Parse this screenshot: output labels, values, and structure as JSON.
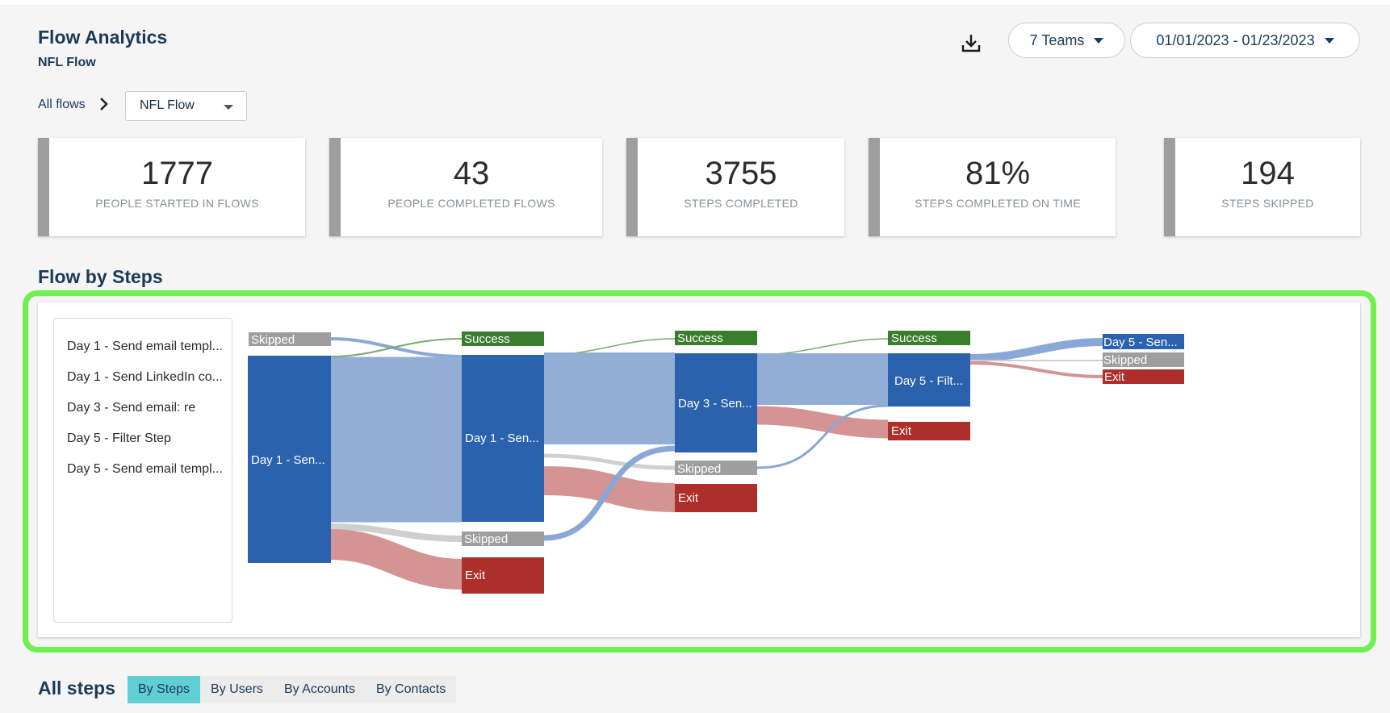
{
  "header": {
    "title": "Flow Analytics",
    "subtitle": "NFL Flow",
    "teams_label": "7 Teams",
    "date_range_label": "01/01/2023 - 01/23/2023"
  },
  "breadcrumb": {
    "link": "All flows",
    "selected_flow": "NFL Flow"
  },
  "stats": [
    {
      "value": "1777",
      "label": "PEOPLE STARTED IN FLOWS"
    },
    {
      "value": "43",
      "label": "PEOPLE COMPLETED FLOWS"
    },
    {
      "value": "3755",
      "label": "STEPS COMPLETED"
    },
    {
      "value": "81%",
      "label": "STEPS COMPLETED ON TIME"
    },
    {
      "value": "194",
      "label": "STEPS SKIPPED"
    }
  ],
  "flow_section": {
    "title": "Flow by Steps",
    "legend": [
      "Day 1 - Send email templ...",
      "Day 1 - Send LinkedIn co...",
      "Day 3 - Send email: re",
      "Day 5 - Filter Step",
      "Day 5 - Send email templ..."
    ],
    "nodes": {
      "c0_skipped": "Skipped",
      "c0_day1": "Day 1 - Sen...",
      "c1_success": "Success",
      "c1_day1": "Day 1 - Sen...",
      "c1_skipped": "Skipped",
      "c1_exit": "Exit",
      "c2_success": "Success",
      "c2_day3": "Day 3 - Sen...",
      "c2_skipped": "Skipped",
      "c2_exit": "Exit",
      "c3_success": "Success",
      "c3_day5": "Day 5 - Filt...",
      "c3_exit": "Exit",
      "c4_day5": "Day 5 - Sen...",
      "c4_skipped": "Skipped",
      "c4_exit": "Exit"
    }
  },
  "all_steps": {
    "title": "All steps",
    "tabs": [
      "By Steps",
      "By Users",
      "By Accounts",
      "By Contacts"
    ],
    "active_tab": "By Steps"
  },
  "colors": {
    "accent_highlight": "#6ef04f",
    "node_blue": "#2b62ae",
    "node_green": "#3a7d2c",
    "node_grey": "#9e9e9e",
    "node_red": "#ad2e2a",
    "tab_active": "#5fcfd3"
  },
  "icons": {
    "download": "download-icon",
    "dropdown": "caret-down-icon",
    "breadcrumb_separator": "chevron-right-icon"
  }
}
